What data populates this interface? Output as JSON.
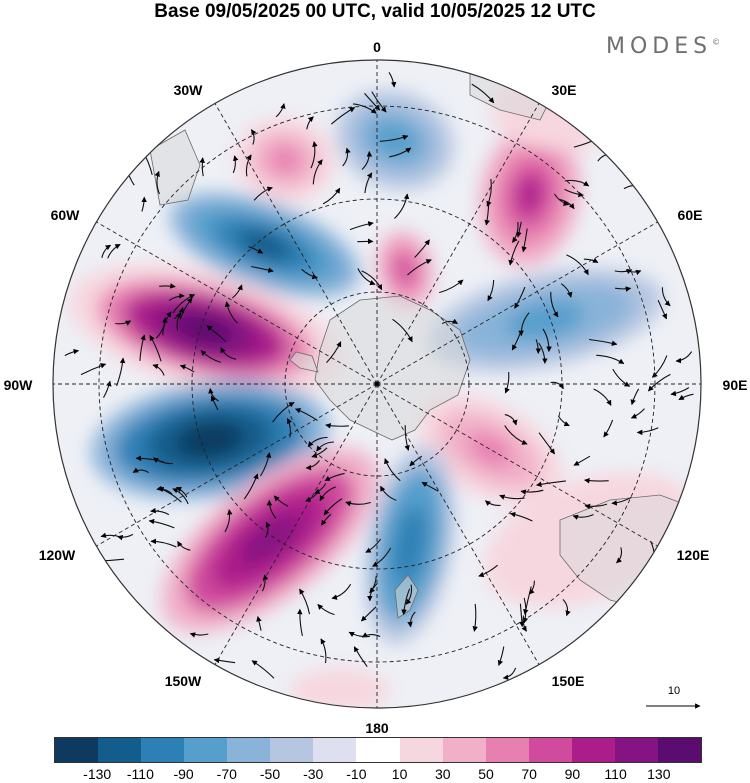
{
  "title": "Base 09/05/2025 00 UTC, valid 10/05/2025 12 UTC",
  "brand": "MODES",
  "brand_mark": "©",
  "longitude_labels": [
    "0",
    "30E",
    "60E",
    "90E",
    "120E",
    "150E",
    "180",
    "150W",
    "120W",
    "90W",
    "60W",
    "30W"
  ],
  "vector_reference": {
    "value": "10"
  },
  "colorbar": {
    "colors": [
      "#0d3a5e",
      "#125d8c",
      "#2d80b5",
      "#569fcc",
      "#8ab3d9",
      "#b6c6e1",
      "#dedfef",
      "#ffffff",
      "#f7d7df",
      "#f1b0c8",
      "#e77fb0",
      "#d04a9d",
      "#ad1c8b",
      "#861382",
      "#5b0c6f"
    ],
    "tick_labels": [
      "-130",
      "-110",
      "-90",
      "-70",
      "-50",
      "-30",
      "-10",
      "10",
      "30",
      "50",
      "70",
      "90",
      "110",
      "130"
    ]
  },
  "anomaly_centres": [
    {
      "lon": 0,
      "sign": "negative",
      "level": -60
    },
    {
      "lon": 25,
      "sign": "positive",
      "level": 100
    },
    {
      "lon": 80,
      "sign": "negative",
      "level": -40
    },
    {
      "lon": 120,
      "sign": "positive",
      "level": 40
    },
    {
      "lon": 160,
      "sign": "negative",
      "level": -90
    },
    {
      "lon": -140,
      "sign": "positive",
      "level": 110
    },
    {
      "lon": -110,
      "sign": "negative",
      "level": -130
    },
    {
      "lon": -70,
      "sign": "positive",
      "level": 140
    },
    {
      "lon": -50,
      "sign": "negative",
      "level": -120
    },
    {
      "lon": -25,
      "sign": "positive",
      "level": 60
    },
    {
      "lon": 10,
      "sign": "positive",
      "level": 80
    }
  ]
}
